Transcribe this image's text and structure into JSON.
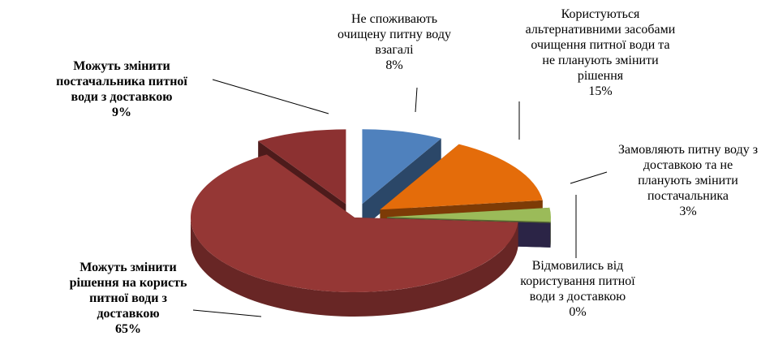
{
  "chart_data": {
    "type": "pie",
    "categories": [
      "Не споживають очищену питну воду взагалі",
      "Користуються альтернативними засобами очищення питної води та не планують змінити рішення",
      "Замовляють питну воду з доставкою та не планують змінити постачальника",
      "Відмовились від користування питної води з доставкою",
      "Можуть змінити рішення на користь питної води з доставкою",
      "Можуть змінити постачальника питної води з доставкою"
    ],
    "values": [
      8,
      15,
      3,
      0,
      65,
      9
    ],
    "value_labels": [
      "8%",
      "15%",
      "3%",
      "0%",
      "65%",
      "9%"
    ],
    "colors": [
      "#4f81bd",
      "#e46c0a",
      "#9bbb59",
      "#2b2446",
      "#953735",
      "#8c3131"
    ]
  }
}
